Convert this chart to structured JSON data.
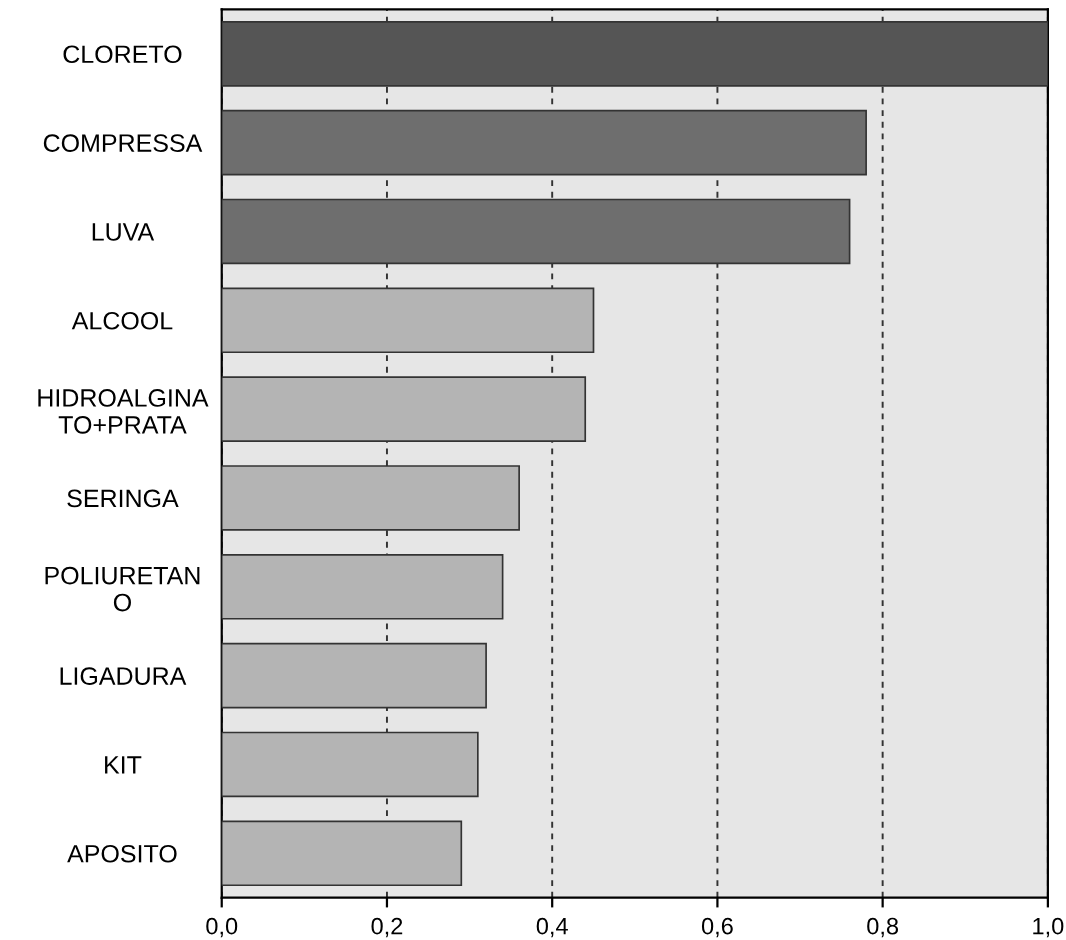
{
  "chart_data": {
    "type": "bar",
    "orientation": "horizontal",
    "categories": [
      "CLORETO",
      "COMPRESSA",
      "LUVA",
      "ALCOOL",
      "HIDROALGINA\nTO+PRATA",
      "SERINGA",
      "POLIURETAN\nO",
      "LIGADURA",
      "KIT",
      "APOSITO"
    ],
    "values": [
      1.0,
      0.78,
      0.76,
      0.45,
      0.44,
      0.36,
      0.34,
      0.32,
      0.31,
      0.29
    ],
    "colors": [
      "#555555",
      "#6e6e6e",
      "#6e6e6e",
      "#b4b4b4",
      "#b4b4b4",
      "#b4b4b4",
      "#b4b4b4",
      "#b4b4b4",
      "#b4b4b4",
      "#b4b4b4"
    ],
    "xlim": [
      0,
      1.0
    ],
    "xticks": [
      {
        "value": 0,
        "label": "0,0"
      },
      {
        "value": 0.2,
        "label": "0,2"
      },
      {
        "value": 0.4,
        "label": "0,4"
      },
      {
        "value": 0.6,
        "label": "0,6"
      },
      {
        "value": 0.8,
        "label": "0,8"
      },
      {
        "value": 1.0,
        "label": "1,0"
      }
    ],
    "grid": "x"
  }
}
